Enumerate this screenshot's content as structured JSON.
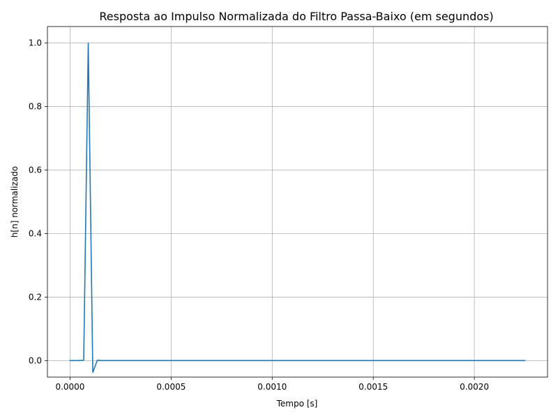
{
  "chart_data": {
    "type": "line",
    "title": "Resposta ao Impulso Normalizada do Filtro Passa-Baixo (em segundos)",
    "xlabel": "Tempo [s]",
    "ylabel": "h[n] normalizado",
    "xlim": [
      -0.000112,
      0.002362
    ],
    "ylim": [
      -0.052,
      1.052
    ],
    "grid": true,
    "xticks": [
      0.0,
      0.0005,
      0.001,
      0.0015,
      0.002
    ],
    "xtick_labels": [
      "0.0000",
      "0.0005",
      "0.0010",
      "0.0015",
      "0.0020"
    ],
    "yticks": [
      0.0,
      0.2,
      0.4,
      0.6,
      0.8,
      1.0
    ],
    "ytick_labels": [
      "0.0",
      "0.2",
      "0.4",
      "0.6",
      "0.8",
      "1.0"
    ],
    "series": [
      {
        "color": "#1f77b4",
        "x": [
          0.0,
          2.25e-05,
          4.5e-05,
          6.75e-05,
          9e-05,
          0.0001125,
          0.000135,
          0.0001575,
          0.00018,
          0.0005,
          0.001,
          0.0015,
          0.002,
          0.00225
        ],
        "y": [
          0.0,
          0.0,
          0.0,
          0.001,
          1.0,
          -0.037,
          0.001,
          0.0,
          0.0,
          0.0,
          0.0,
          0.0,
          0.0,
          0.0
        ]
      }
    ]
  }
}
